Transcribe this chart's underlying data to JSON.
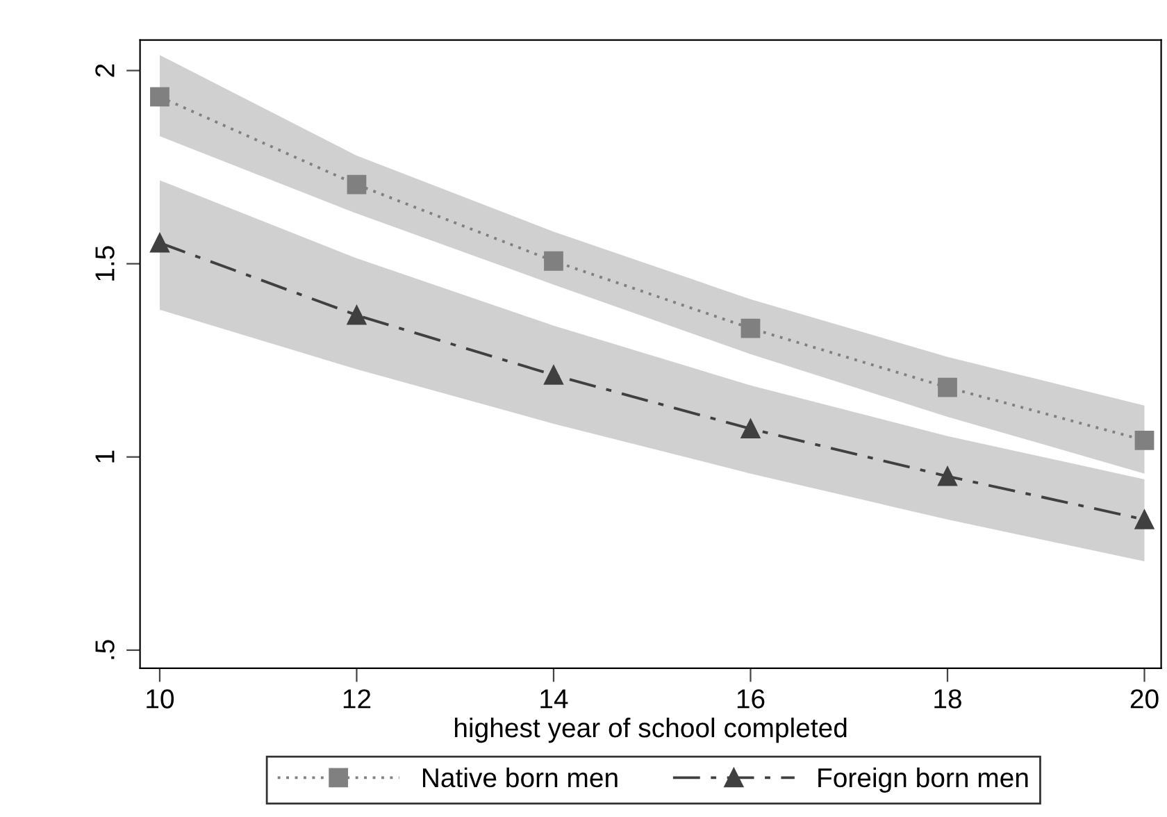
{
  "chart_data": {
    "type": "line",
    "xlabel": "highest year of school completed",
    "x": [
      10,
      12,
      14,
      16,
      18,
      20
    ],
    "series": [
      {
        "name": "Native born men",
        "color": "#808080",
        "marker": "square",
        "line_style": "dotted",
        "values": [
          1.932,
          1.705,
          1.507,
          1.333,
          1.18,
          1.043
        ],
        "lower": [
          1.83,
          1.63,
          1.446,
          1.266,
          1.104,
          0.957
        ],
        "upper": [
          2.04,
          1.78,
          1.583,
          1.408,
          1.259,
          1.133
        ]
      },
      {
        "name": "Foreign born men",
        "color": "#404040",
        "marker": "triangle",
        "line_style": "dashed",
        "values": [
          1.554,
          1.367,
          1.212,
          1.073,
          0.95,
          0.838
        ],
        "lower": [
          1.381,
          1.227,
          1.086,
          0.957,
          0.838,
          0.73
        ],
        "upper": [
          1.716,
          1.514,
          1.34,
          1.185,
          1.054,
          0.942
        ]
      }
    ],
    "xlim": [
      9.8,
      20.17
    ],
    "ylim": [
      0.453,
      2.079
    ],
    "xticks": [
      10,
      12,
      14,
      16,
      18,
      20
    ],
    "yticks": [
      {
        "value": 0.5,
        "label": ".5"
      },
      1,
      1.5,
      2
    ],
    "grid": false,
    "legend": "bottom"
  }
}
